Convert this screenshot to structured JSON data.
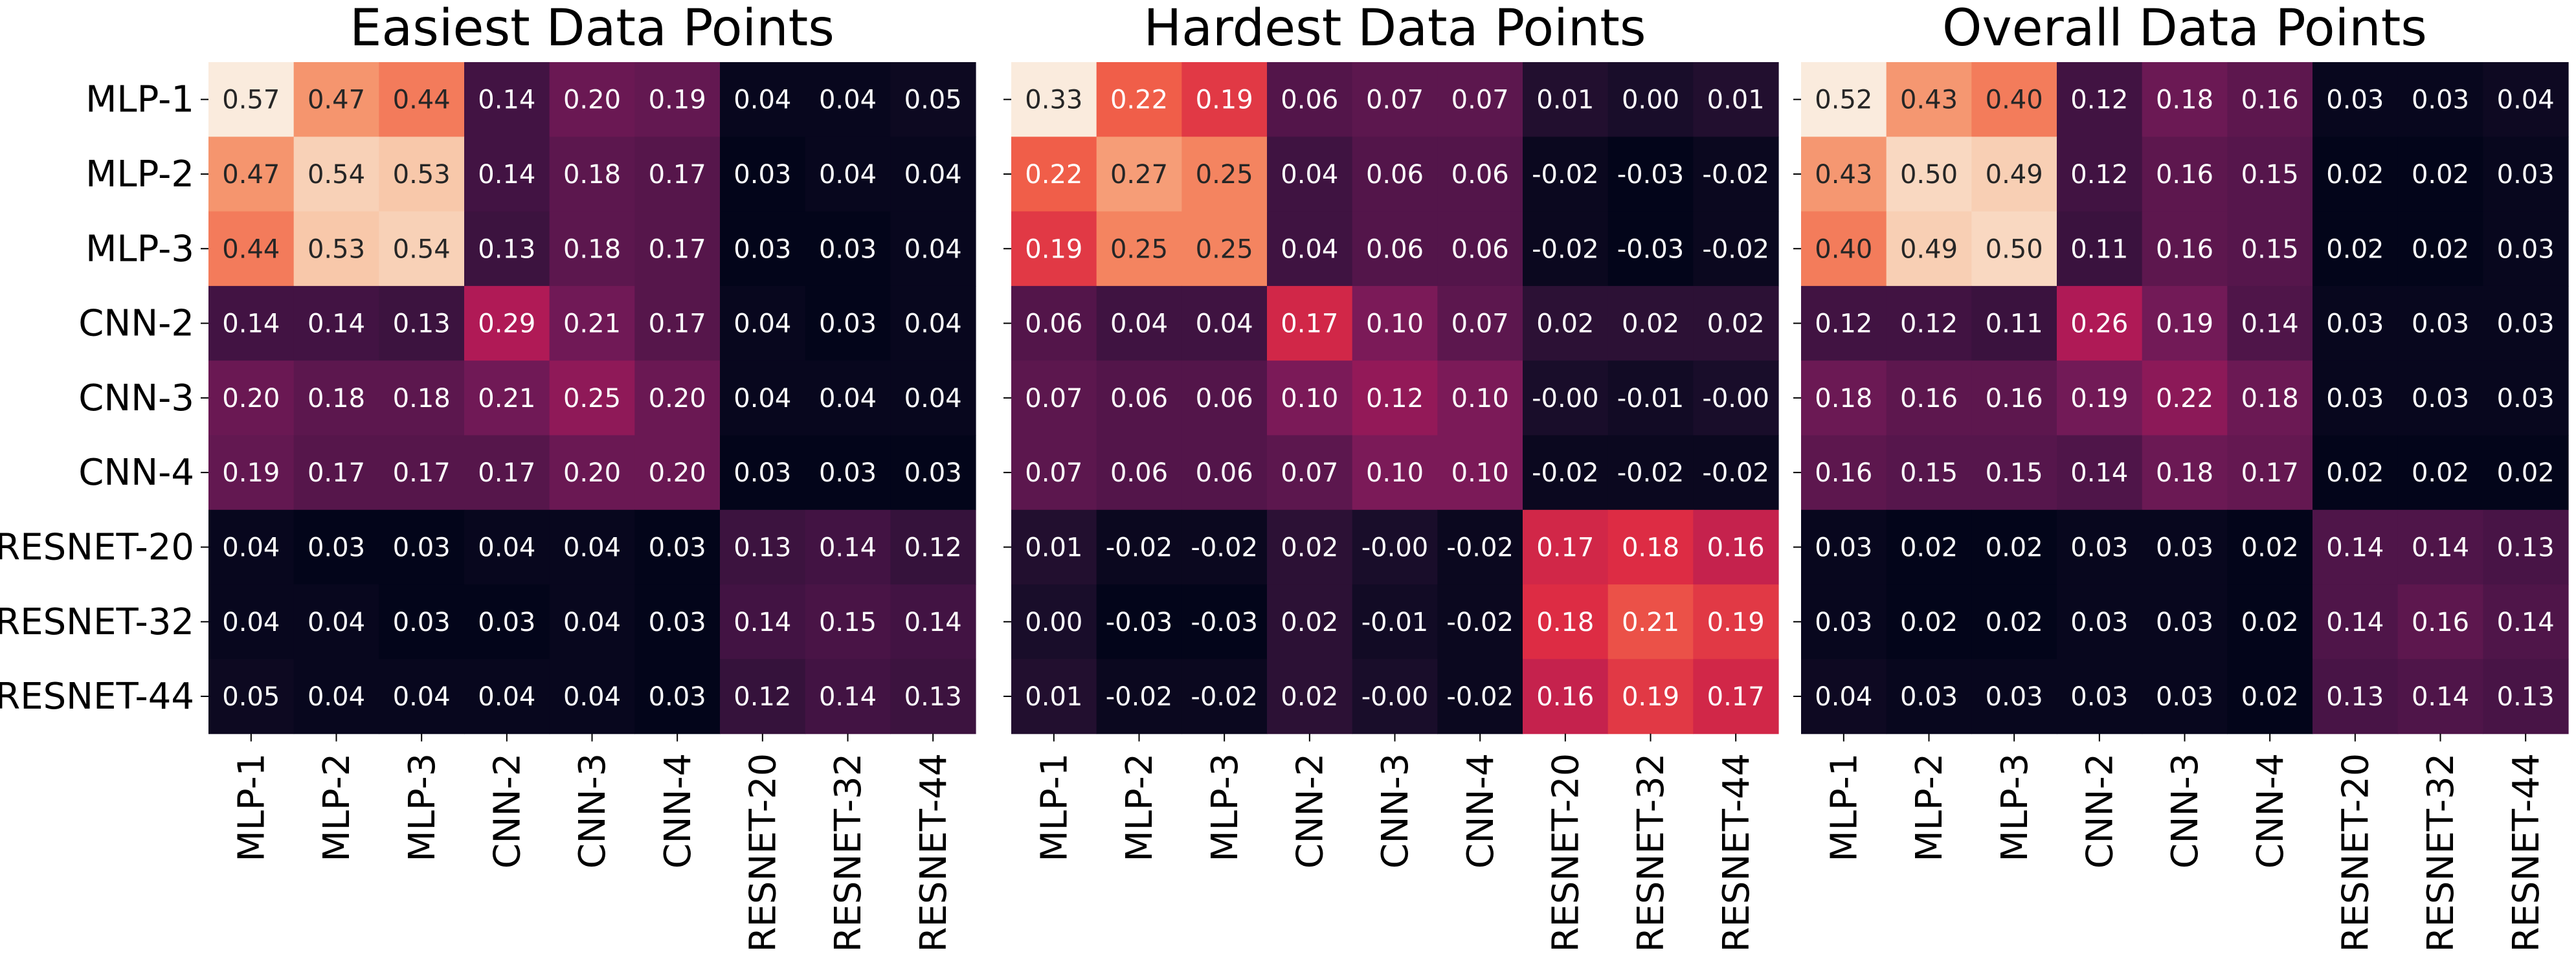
{
  "labels": [
    "MLP-1",
    "MLP-2",
    "MLP-3",
    "CNN-2",
    "CNN-3",
    "CNN-4",
    "RESNET-20",
    "RESNET-32",
    "RESNET-44"
  ],
  "chart_data": [
    {
      "type": "heatmap",
      "title": "Easiest Data Points",
      "categories": [
        "MLP-1",
        "MLP-2",
        "MLP-3",
        "CNN-2",
        "CNN-3",
        "CNN-4",
        "RESNET-20",
        "RESNET-32",
        "RESNET-44"
      ],
      "values": [
        [
          0.57,
          0.47,
          0.44,
          0.14,
          0.2,
          0.19,
          0.04,
          0.04,
          0.05
        ],
        [
          0.47,
          0.54,
          0.53,
          0.14,
          0.18,
          0.17,
          0.03,
          0.04,
          0.04
        ],
        [
          0.44,
          0.53,
          0.54,
          0.13,
          0.18,
          0.17,
          0.03,
          0.03,
          0.04
        ],
        [
          0.14,
          0.14,
          0.13,
          0.29,
          0.21,
          0.17,
          0.04,
          0.03,
          0.04
        ],
        [
          0.2,
          0.18,
          0.18,
          0.21,
          0.25,
          0.2,
          0.04,
          0.04,
          0.04
        ],
        [
          0.19,
          0.17,
          0.17,
          0.17,
          0.2,
          0.2,
          0.03,
          0.03,
          0.03
        ],
        [
          0.04,
          0.03,
          0.03,
          0.04,
          0.04,
          0.03,
          0.13,
          0.14,
          0.12
        ],
        [
          0.04,
          0.04,
          0.03,
          0.03,
          0.04,
          0.03,
          0.14,
          0.15,
          0.14
        ],
        [
          0.05,
          0.04,
          0.04,
          0.04,
          0.04,
          0.03,
          0.12,
          0.14,
          0.13
        ]
      ],
      "labels_text": [
        [
          "0.57",
          "0.47",
          "0.44",
          "0.14",
          "0.20",
          "0.19",
          "0.04",
          "0.04",
          "0.05"
        ],
        [
          "0.47",
          "0.54",
          "0.53",
          "0.14",
          "0.18",
          "0.17",
          "0.03",
          "0.04",
          "0.04"
        ],
        [
          "0.44",
          "0.53",
          "0.54",
          "0.13",
          "0.18",
          "0.17",
          "0.03",
          "0.03",
          "0.04"
        ],
        [
          "0.14",
          "0.14",
          "0.13",
          "0.29",
          "0.21",
          "0.17",
          "0.04",
          "0.03",
          "0.04"
        ],
        [
          "0.20",
          "0.18",
          "0.18",
          "0.21",
          "0.25",
          "0.20",
          "0.04",
          "0.04",
          "0.04"
        ],
        [
          "0.19",
          "0.17",
          "0.17",
          "0.17",
          "0.20",
          "0.20",
          "0.03",
          "0.03",
          "0.03"
        ],
        [
          "0.04",
          "0.03",
          "0.03",
          "0.04",
          "0.04",
          "0.03",
          "0.13",
          "0.14",
          "0.12"
        ],
        [
          "0.04",
          "0.04",
          "0.03",
          "0.03",
          "0.04",
          "0.03",
          "0.14",
          "0.15",
          "0.14"
        ],
        [
          "0.05",
          "0.04",
          "0.04",
          "0.04",
          "0.04",
          "0.03",
          "0.12",
          "0.14",
          "0.13"
        ]
      ],
      "show_ylabels": true
    },
    {
      "type": "heatmap",
      "title": "Hardest Data Points",
      "categories": [
        "MLP-1",
        "MLP-2",
        "MLP-3",
        "CNN-2",
        "CNN-3",
        "CNN-4",
        "RESNET-20",
        "RESNET-32",
        "RESNET-44"
      ],
      "values": [
        [
          0.33,
          0.22,
          0.19,
          0.06,
          0.07,
          0.07,
          0.01,
          0.0,
          0.01
        ],
        [
          0.22,
          0.27,
          0.25,
          0.04,
          0.06,
          0.06,
          -0.02,
          -0.03,
          -0.02
        ],
        [
          0.19,
          0.25,
          0.25,
          0.04,
          0.06,
          0.06,
          -0.02,
          -0.03,
          -0.02
        ],
        [
          0.06,
          0.04,
          0.04,
          0.17,
          0.1,
          0.07,
          0.02,
          0.02,
          0.02
        ],
        [
          0.07,
          0.06,
          0.06,
          0.1,
          0.12,
          0.1,
          -0.0,
          -0.01,
          -0.0
        ],
        [
          0.07,
          0.06,
          0.06,
          0.07,
          0.1,
          0.1,
          -0.02,
          -0.02,
          -0.02
        ],
        [
          0.01,
          -0.02,
          -0.02,
          0.02,
          -0.0,
          -0.02,
          0.17,
          0.18,
          0.16
        ],
        [
          0.0,
          -0.03,
          -0.03,
          0.02,
          -0.01,
          -0.02,
          0.18,
          0.21,
          0.19
        ],
        [
          0.01,
          -0.02,
          -0.02,
          0.02,
          -0.0,
          -0.02,
          0.16,
          0.19,
          0.17
        ]
      ],
      "labels_text": [
        [
          "0.33",
          "0.22",
          "0.19",
          "0.06",
          "0.07",
          "0.07",
          "0.01",
          "0.00",
          "0.01"
        ],
        [
          "0.22",
          "0.27",
          "0.25",
          "0.04",
          "0.06",
          "0.06",
          "-0.02",
          "-0.03",
          "-0.02"
        ],
        [
          "0.19",
          "0.25",
          "0.25",
          "0.04",
          "0.06",
          "0.06",
          "-0.02",
          "-0.03",
          "-0.02"
        ],
        [
          "0.06",
          "0.04",
          "0.04",
          "0.17",
          "0.10",
          "0.07",
          "0.02",
          "0.02",
          "0.02"
        ],
        [
          "0.07",
          "0.06",
          "0.06",
          "0.10",
          "0.12",
          "0.10",
          "-0.00",
          "-0.01",
          "-0.00"
        ],
        [
          "0.07",
          "0.06",
          "0.06",
          "0.07",
          "0.10",
          "0.10",
          "-0.02",
          "-0.02",
          "-0.02"
        ],
        [
          "0.01",
          "-0.02",
          "-0.02",
          "0.02",
          "-0.00",
          "-0.02",
          "0.17",
          "0.18",
          "0.16"
        ],
        [
          "0.00",
          "-0.03",
          "-0.03",
          "0.02",
          "-0.01",
          "-0.02",
          "0.18",
          "0.21",
          "0.19"
        ],
        [
          "0.01",
          "-0.02",
          "-0.02",
          "0.02",
          "-0.00",
          "-0.02",
          "0.16",
          "0.19",
          "0.17"
        ]
      ],
      "show_ylabels": false
    },
    {
      "type": "heatmap",
      "title": "Overall Data Points",
      "categories": [
        "MLP-1",
        "MLP-2",
        "MLP-3",
        "CNN-2",
        "CNN-3",
        "CNN-4",
        "RESNET-20",
        "RESNET-32",
        "RESNET-44"
      ],
      "values": [
        [
          0.52,
          0.43,
          0.4,
          0.12,
          0.18,
          0.16,
          0.03,
          0.03,
          0.04
        ],
        [
          0.43,
          0.5,
          0.49,
          0.12,
          0.16,
          0.15,
          0.02,
          0.02,
          0.03
        ],
        [
          0.4,
          0.49,
          0.5,
          0.11,
          0.16,
          0.15,
          0.02,
          0.02,
          0.03
        ],
        [
          0.12,
          0.12,
          0.11,
          0.26,
          0.19,
          0.14,
          0.03,
          0.03,
          0.03
        ],
        [
          0.18,
          0.16,
          0.16,
          0.19,
          0.22,
          0.18,
          0.03,
          0.03,
          0.03
        ],
        [
          0.16,
          0.15,
          0.15,
          0.14,
          0.18,
          0.17,
          0.02,
          0.02,
          0.02
        ],
        [
          0.03,
          0.02,
          0.02,
          0.03,
          0.03,
          0.02,
          0.14,
          0.14,
          0.13
        ],
        [
          0.03,
          0.02,
          0.02,
          0.03,
          0.03,
          0.02,
          0.14,
          0.16,
          0.14
        ],
        [
          0.04,
          0.03,
          0.03,
          0.03,
          0.03,
          0.02,
          0.13,
          0.14,
          0.13
        ]
      ],
      "labels_text": [
        [
          "0.52",
          "0.43",
          "0.40",
          "0.12",
          "0.18",
          "0.16",
          "0.03",
          "0.03",
          "0.04"
        ],
        [
          "0.43",
          "0.50",
          "0.49",
          "0.12",
          "0.16",
          "0.15",
          "0.02",
          "0.02",
          "0.03"
        ],
        [
          "0.40",
          "0.49",
          "0.50",
          "0.11",
          "0.16",
          "0.15",
          "0.02",
          "0.02",
          "0.03"
        ],
        [
          "0.12",
          "0.12",
          "0.11",
          "0.26",
          "0.19",
          "0.14",
          "0.03",
          "0.03",
          "0.03"
        ],
        [
          "0.18",
          "0.16",
          "0.16",
          "0.19",
          "0.22",
          "0.18",
          "0.03",
          "0.03",
          "0.03"
        ],
        [
          "0.16",
          "0.15",
          "0.15",
          "0.14",
          "0.18",
          "0.17",
          "0.02",
          "0.02",
          "0.02"
        ],
        [
          "0.03",
          "0.02",
          "0.02",
          "0.03",
          "0.03",
          "0.02",
          "0.14",
          "0.14",
          "0.13"
        ],
        [
          "0.03",
          "0.02",
          "0.02",
          "0.03",
          "0.03",
          "0.02",
          "0.14",
          "0.16",
          "0.14"
        ],
        [
          "0.04",
          "0.03",
          "0.03",
          "0.03",
          "0.03",
          "0.02",
          "0.13",
          "0.14",
          "0.13"
        ]
      ],
      "show_ylabels": false
    }
  ],
  "colormap": "rocket",
  "text_colors": {
    "dark": "#262626",
    "light": "#ffffff"
  },
  "background": "#ffffff"
}
